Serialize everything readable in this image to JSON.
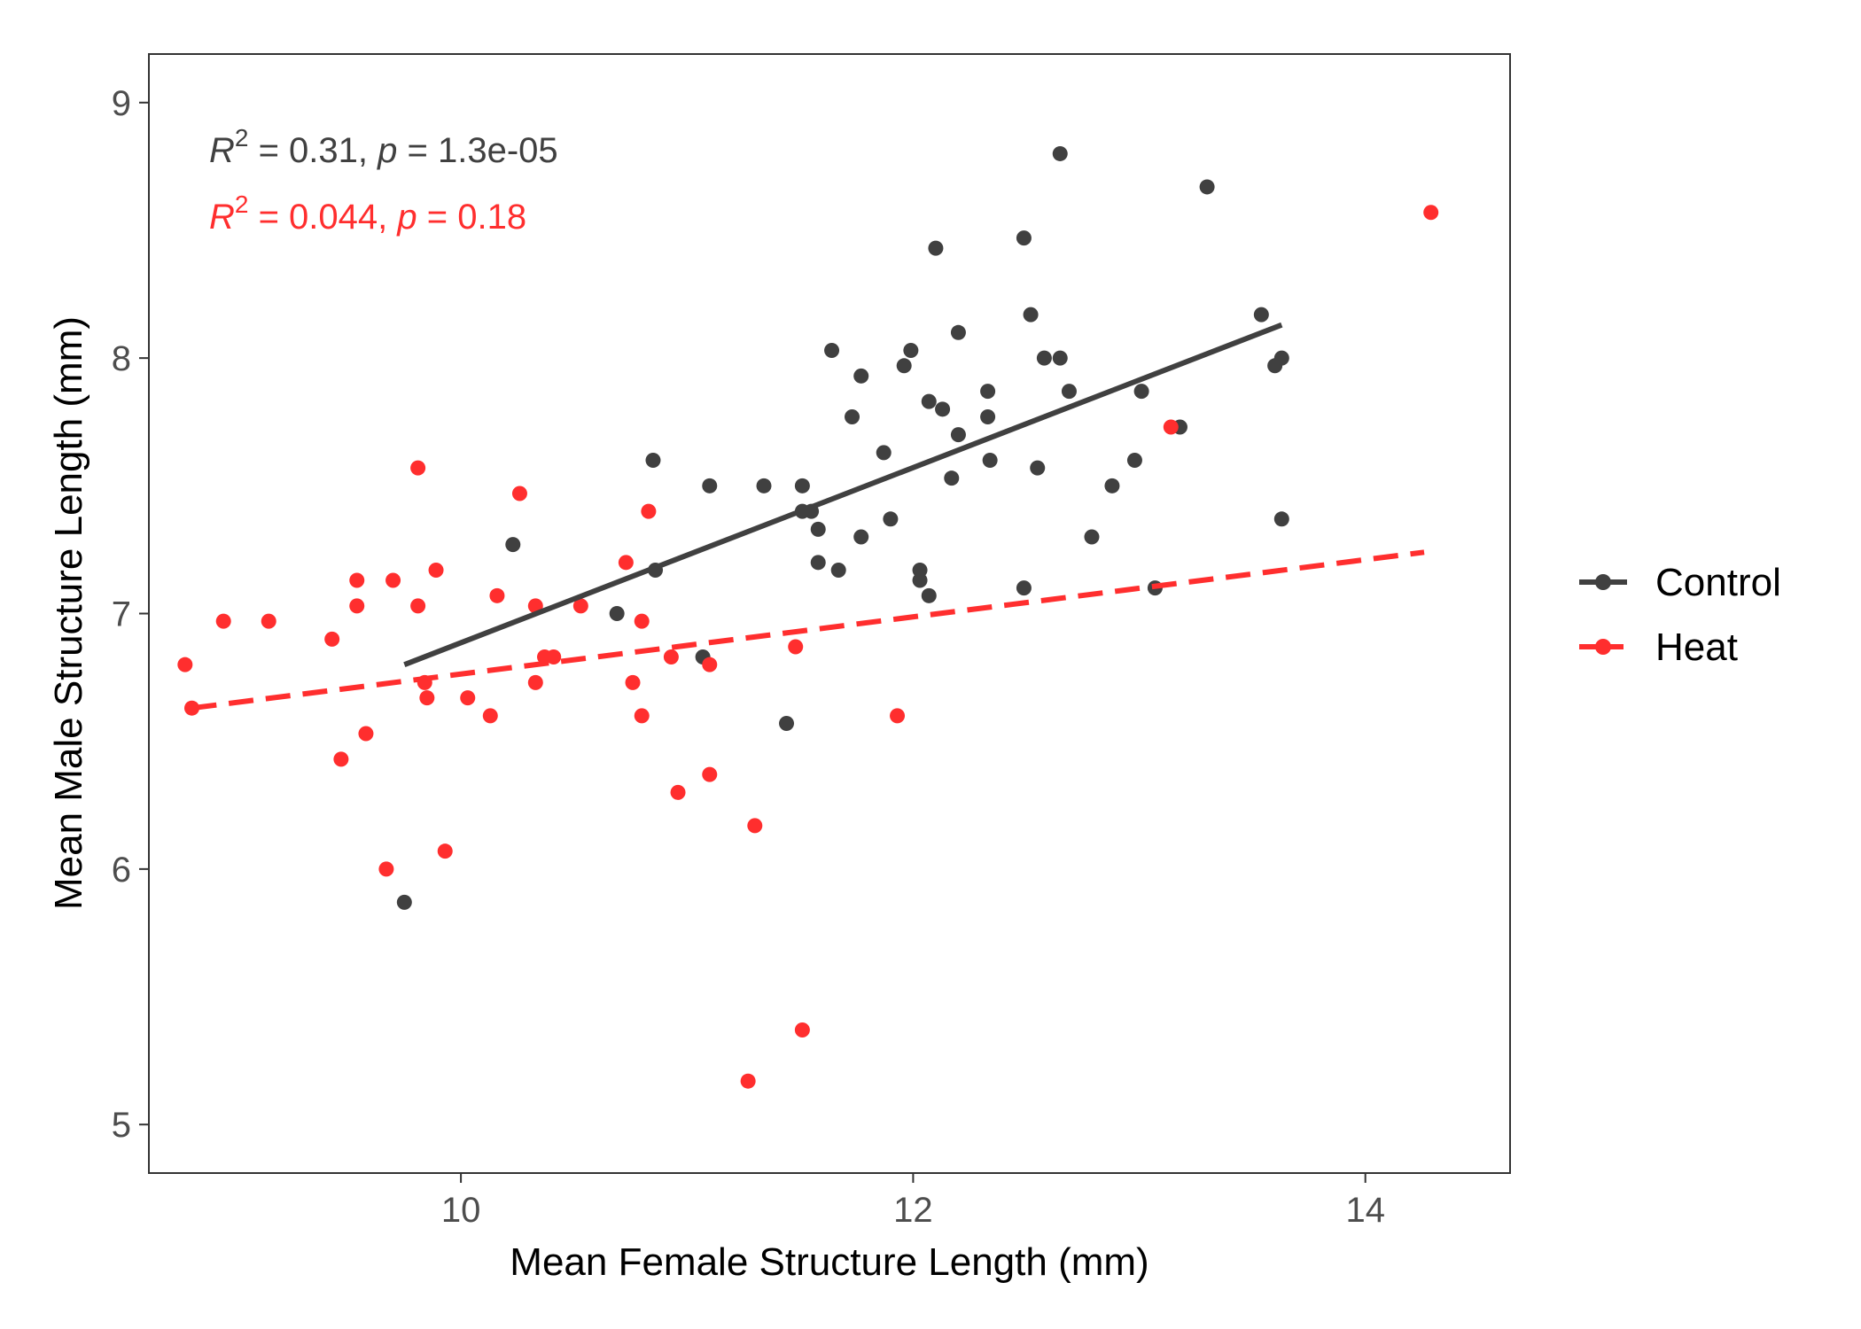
{
  "chart_data": {
    "type": "scatter",
    "xlabel": "Mean Female Structure Length (mm)",
    "ylabel": "Mean Male Structure Length (mm)",
    "xlim": [
      8.62,
      14.64
    ],
    "ylim": [
      4.81,
      9.19
    ],
    "x_ticks": [
      10,
      12,
      14
    ],
    "y_ticks": [
      5,
      6,
      7,
      8,
      9
    ],
    "grid": false,
    "legend_position": "right",
    "series": [
      {
        "name": "Control",
        "color": "#404040",
        "line_style": "solid",
        "fit_line": {
          "x": [
            9.75,
            13.63
          ],
          "y": [
            6.8,
            8.13
          ]
        },
        "annotation": {
          "r2_label": "R",
          "r2_sup": "2",
          "r2_value": " = 0.31, ",
          "p_label": "p",
          "p_value": " = 1.3e-05"
        },
        "points": [
          {
            "x": 9.75,
            "y": 5.87
          },
          {
            "x": 10.23,
            "y": 7.27
          },
          {
            "x": 10.69,
            "y": 7.0
          },
          {
            "x": 10.85,
            "y": 7.6
          },
          {
            "x": 10.86,
            "y": 7.17
          },
          {
            "x": 11.07,
            "y": 6.83
          },
          {
            "x": 11.1,
            "y": 7.5
          },
          {
            "x": 11.34,
            "y": 7.5
          },
          {
            "x": 11.44,
            "y": 6.57
          },
          {
            "x": 11.51,
            "y": 7.5
          },
          {
            "x": 11.51,
            "y": 7.4
          },
          {
            "x": 11.55,
            "y": 7.4
          },
          {
            "x": 11.58,
            "y": 7.33
          },
          {
            "x": 11.58,
            "y": 7.2
          },
          {
            "x": 11.64,
            "y": 8.03
          },
          {
            "x": 11.67,
            "y": 7.17
          },
          {
            "x": 11.73,
            "y": 7.77
          },
          {
            "x": 11.77,
            "y": 7.93
          },
          {
            "x": 11.77,
            "y": 7.3
          },
          {
            "x": 11.87,
            "y": 7.63
          },
          {
            "x": 11.9,
            "y": 7.37
          },
          {
            "x": 11.96,
            "y": 7.97
          },
          {
            "x": 11.99,
            "y": 8.03
          },
          {
            "x": 12.03,
            "y": 7.17
          },
          {
            "x": 12.03,
            "y": 7.13
          },
          {
            "x": 12.07,
            "y": 7.83
          },
          {
            "x": 12.07,
            "y": 7.07
          },
          {
            "x": 12.1,
            "y": 8.43
          },
          {
            "x": 12.13,
            "y": 7.8
          },
          {
            "x": 12.17,
            "y": 7.53
          },
          {
            "x": 12.2,
            "y": 8.1
          },
          {
            "x": 12.2,
            "y": 7.7
          },
          {
            "x": 12.33,
            "y": 7.87
          },
          {
            "x": 12.33,
            "y": 7.77
          },
          {
            "x": 12.34,
            "y": 7.6
          },
          {
            "x": 12.49,
            "y": 8.47
          },
          {
            "x": 12.49,
            "y": 7.1
          },
          {
            "x": 12.52,
            "y": 8.17
          },
          {
            "x": 12.55,
            "y": 7.57
          },
          {
            "x": 12.58,
            "y": 8.0
          },
          {
            "x": 12.65,
            "y": 8.8
          },
          {
            "x": 12.65,
            "y": 8.0
          },
          {
            "x": 12.69,
            "y": 7.87
          },
          {
            "x": 12.79,
            "y": 7.3
          },
          {
            "x": 12.88,
            "y": 7.5
          },
          {
            "x": 12.98,
            "y": 7.6
          },
          {
            "x": 13.01,
            "y": 7.87
          },
          {
            "x": 13.07,
            "y": 7.1
          },
          {
            "x": 13.18,
            "y": 7.73
          },
          {
            "x": 13.3,
            "y": 8.67
          },
          {
            "x": 13.54,
            "y": 8.17
          },
          {
            "x": 13.6,
            "y": 7.97
          },
          {
            "x": 13.63,
            "y": 8.0
          },
          {
            "x": 13.63,
            "y": 7.37
          }
        ]
      },
      {
        "name": "Heat",
        "color": "#ff2e2e",
        "line_style": "dashed",
        "fit_line": {
          "x": [
            8.81,
            14.26
          ],
          "y": [
            6.63,
            7.24
          ]
        },
        "annotation": {
          "r2_label": "R",
          "r2_sup": "2",
          "r2_value": " = 0.044, ",
          "p_label": "p",
          "p_value": " = 0.18"
        },
        "points": [
          {
            "x": 8.78,
            "y": 6.8
          },
          {
            "x": 8.81,
            "y": 6.63
          },
          {
            "x": 8.95,
            "y": 6.97
          },
          {
            "x": 9.15,
            "y": 6.97
          },
          {
            "x": 9.43,
            "y": 6.9
          },
          {
            "x": 9.47,
            "y": 6.43
          },
          {
            "x": 9.54,
            "y": 7.13
          },
          {
            "x": 9.54,
            "y": 7.03
          },
          {
            "x": 9.58,
            "y": 6.53
          },
          {
            "x": 9.67,
            "y": 6.0
          },
          {
            "x": 9.7,
            "y": 7.13
          },
          {
            "x": 9.81,
            "y": 7.57
          },
          {
            "x": 9.81,
            "y": 7.03
          },
          {
            "x": 9.84,
            "y": 6.73
          },
          {
            "x": 9.85,
            "y": 6.67
          },
          {
            "x": 9.89,
            "y": 7.17
          },
          {
            "x": 9.93,
            "y": 6.07
          },
          {
            "x": 10.03,
            "y": 6.67
          },
          {
            "x": 10.13,
            "y": 6.6
          },
          {
            "x": 10.16,
            "y": 7.07
          },
          {
            "x": 10.26,
            "y": 7.47
          },
          {
            "x": 10.33,
            "y": 7.03
          },
          {
            "x": 10.33,
            "y": 6.73
          },
          {
            "x": 10.37,
            "y": 6.83
          },
          {
            "x": 10.41,
            "y": 6.83
          },
          {
            "x": 10.53,
            "y": 7.03
          },
          {
            "x": 10.73,
            "y": 7.2
          },
          {
            "x": 10.76,
            "y": 6.73
          },
          {
            "x": 10.8,
            "y": 6.97
          },
          {
            "x": 10.8,
            "y": 6.6
          },
          {
            "x": 10.83,
            "y": 7.4
          },
          {
            "x": 10.93,
            "y": 6.83
          },
          {
            "x": 10.96,
            "y": 6.3
          },
          {
            "x": 11.1,
            "y": 6.8
          },
          {
            "x": 11.1,
            "y": 6.37
          },
          {
            "x": 11.27,
            "y": 5.17
          },
          {
            "x": 11.3,
            "y": 6.17
          },
          {
            "x": 11.48,
            "y": 6.87
          },
          {
            "x": 11.51,
            "y": 5.37
          },
          {
            "x": 11.93,
            "y": 6.6
          },
          {
            "x": 13.14,
            "y": 7.73
          },
          {
            "x": 14.29,
            "y": 8.57
          }
        ]
      }
    ]
  }
}
